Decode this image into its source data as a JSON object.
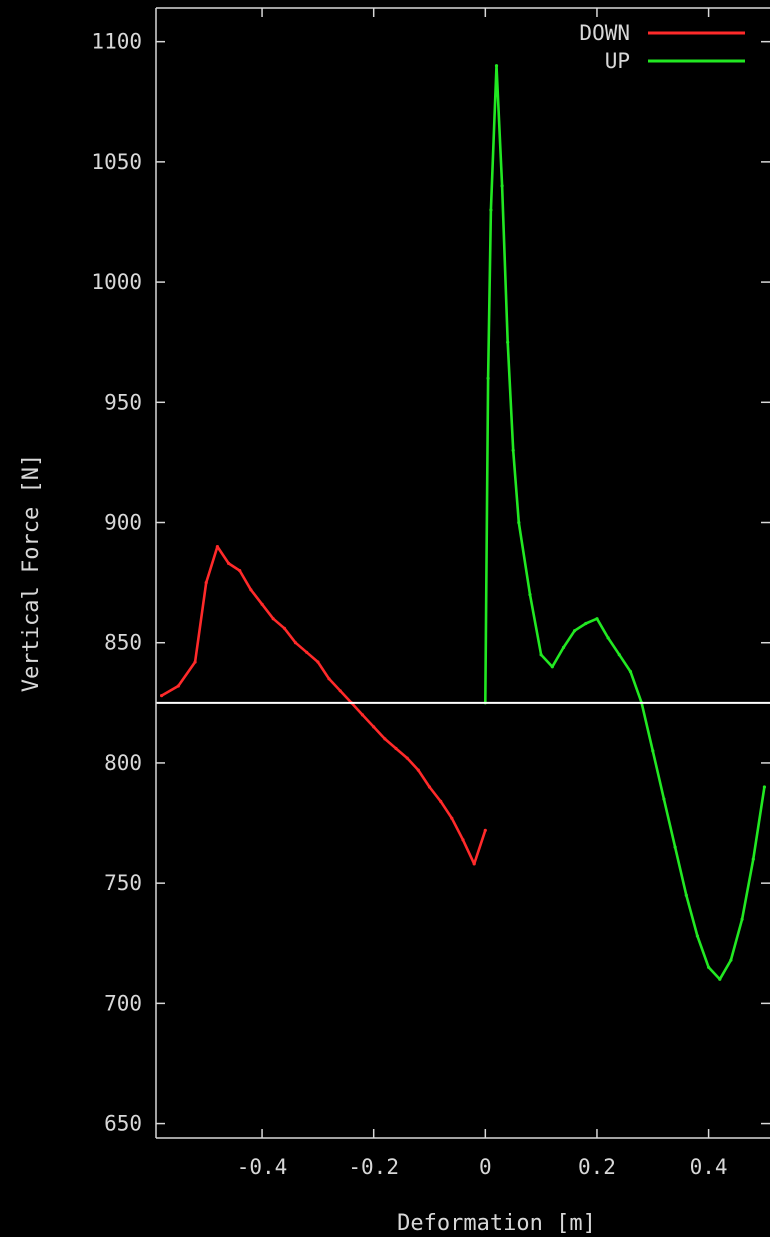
{
  "chart_data": {
    "type": "line",
    "xlabel": "Deformation [m]",
    "ylabel": "Vertical Force [N]",
    "xlim": [
      -0.59,
      0.51
    ],
    "ylim": [
      644,
      1114
    ],
    "x_ticks": [
      -0.4,
      -0.2,
      0,
      0.2,
      0.4
    ],
    "x_tick_labels": [
      "-0.4",
      "-0.2",
      "0",
      "0.2",
      "0.4"
    ],
    "y_ticks": [
      650,
      700,
      750,
      800,
      850,
      900,
      950,
      1000,
      1050,
      1100
    ],
    "y_tick_labels": [
      "650",
      "700",
      "750",
      "800",
      "850",
      "900",
      "950",
      "1000",
      "1050",
      "1100"
    ],
    "grid": false,
    "legend": "top-right",
    "reference_line": {
      "y": 825,
      "color": "#ffffff"
    },
    "series": [
      {
        "name": "DOWN",
        "color": "#ff2a2a",
        "x": [
          -0.58,
          -0.55,
          -0.52,
          -0.5,
          -0.48,
          -0.46,
          -0.44,
          -0.42,
          -0.4,
          -0.38,
          -0.36,
          -0.34,
          -0.32,
          -0.3,
          -0.28,
          -0.26,
          -0.24,
          -0.22,
          -0.2,
          -0.18,
          -0.16,
          -0.14,
          -0.12,
          -0.1,
          -0.08,
          -0.06,
          -0.04,
          -0.02,
          0.0
        ],
        "y": [
          828,
          832,
          842,
          875,
          890,
          883,
          880,
          872,
          866,
          860,
          856,
          850,
          846,
          842,
          835,
          830,
          825,
          820,
          815,
          810,
          806,
          802,
          797,
          790,
          784,
          777,
          768,
          758,
          772
        ]
      },
      {
        "name": "UP",
        "color": "#22e822",
        "x": [
          0.0,
          0.005,
          0.01,
          0.02,
          0.03,
          0.04,
          0.05,
          0.06,
          0.08,
          0.1,
          0.12,
          0.14,
          0.16,
          0.18,
          0.2,
          0.22,
          0.24,
          0.26,
          0.28,
          0.3,
          0.32,
          0.34,
          0.36,
          0.38,
          0.4,
          0.42,
          0.44,
          0.46,
          0.48,
          0.5
        ],
        "y": [
          825,
          960,
          1030,
          1090,
          1040,
          975,
          930,
          900,
          870,
          845,
          840,
          848,
          855,
          858,
          860,
          852,
          845,
          838,
          825,
          805,
          785,
          765,
          745,
          728,
          715,
          710,
          718,
          735,
          760,
          790
        ]
      }
    ]
  }
}
